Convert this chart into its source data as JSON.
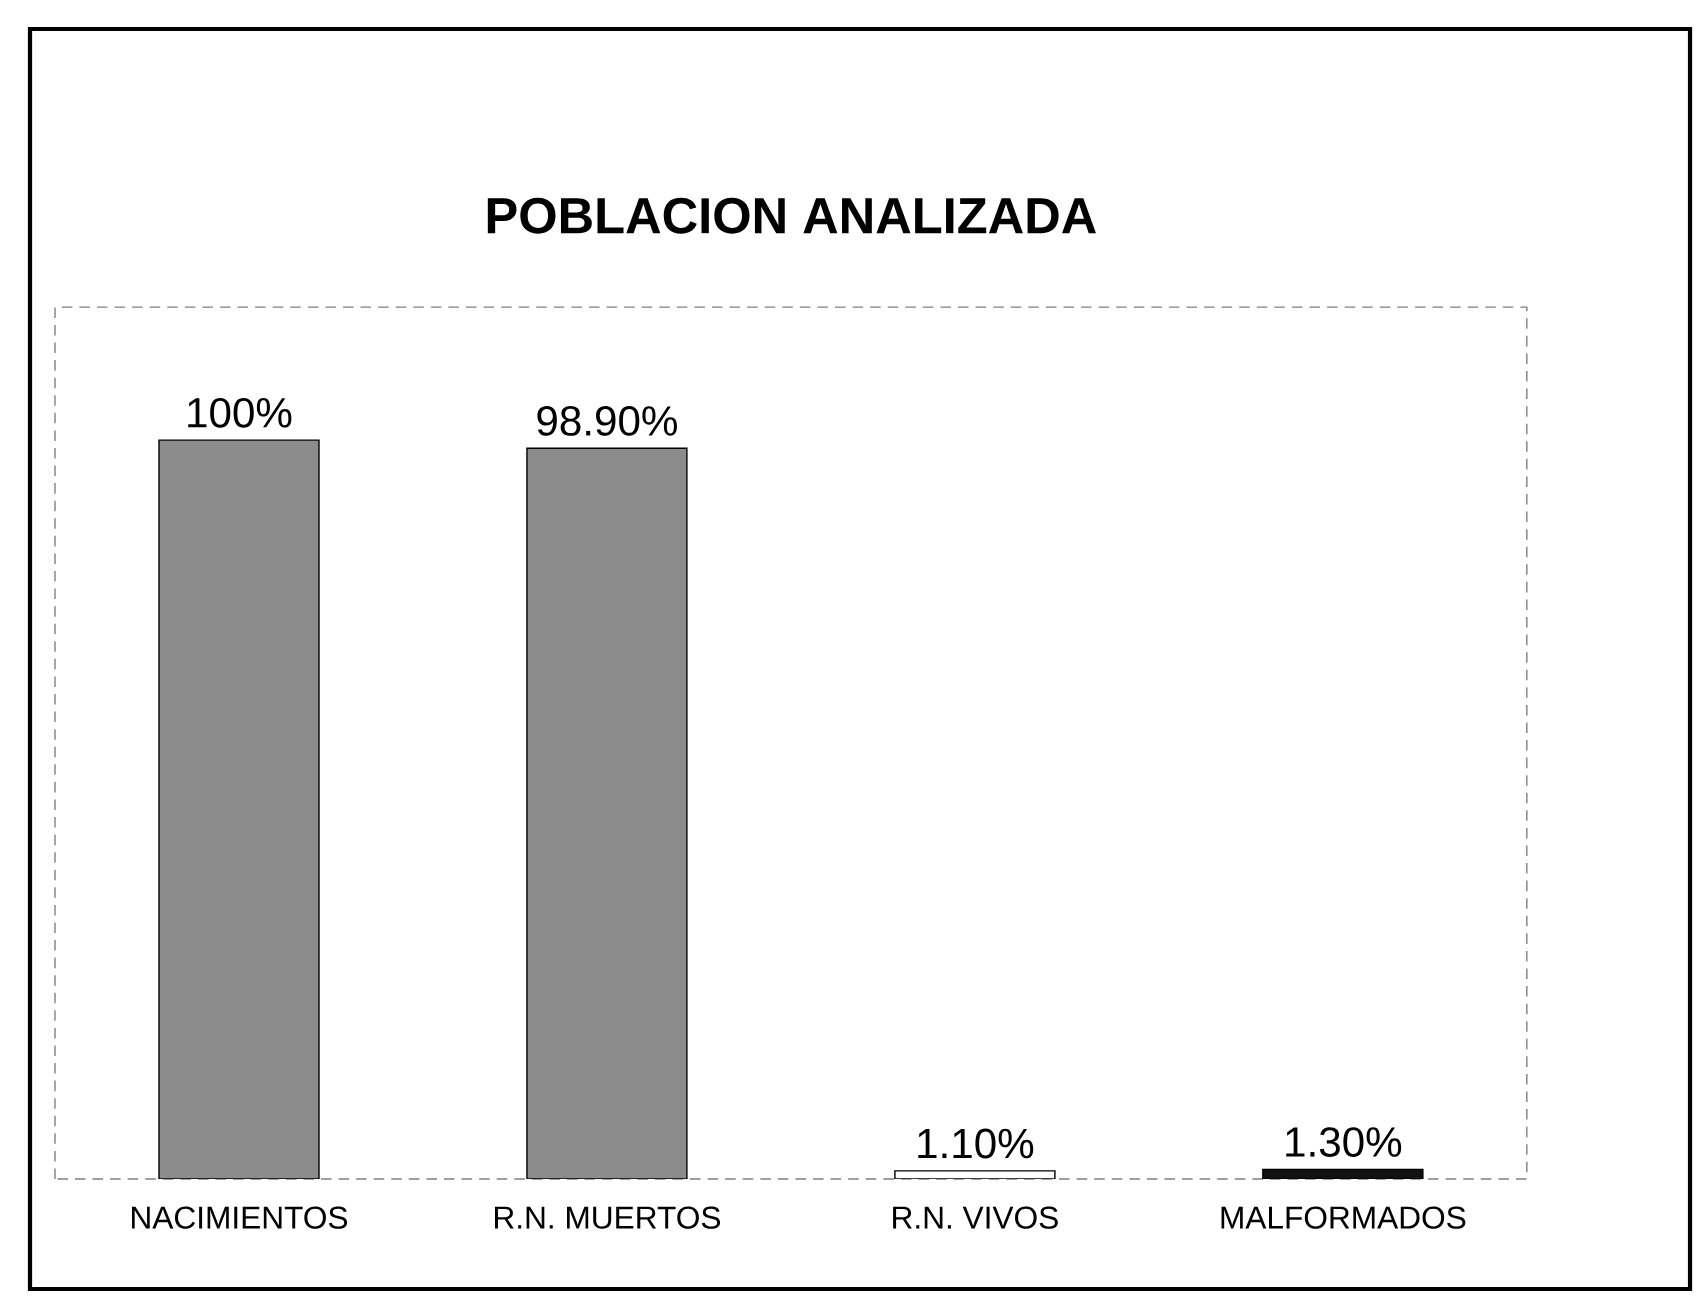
{
  "chart_data": {
    "type": "bar",
    "title": "POBLACION ANALIZADA",
    "categories": [
      "NACIMIENTOS",
      "R.N. MUERTOS",
      "R.N. VIVOS",
      "MALFORMADOS"
    ],
    "values": [
      100,
      98.9,
      1.1,
      1.3
    ],
    "value_labels": [
      "100%",
      "98.90%",
      "1.10%",
      "1.30%"
    ],
    "colors": [
      "#8c8c8c",
      "#8c8c8c",
      "#ffffff",
      "#111111"
    ],
    "tick_labels": "x"
  }
}
